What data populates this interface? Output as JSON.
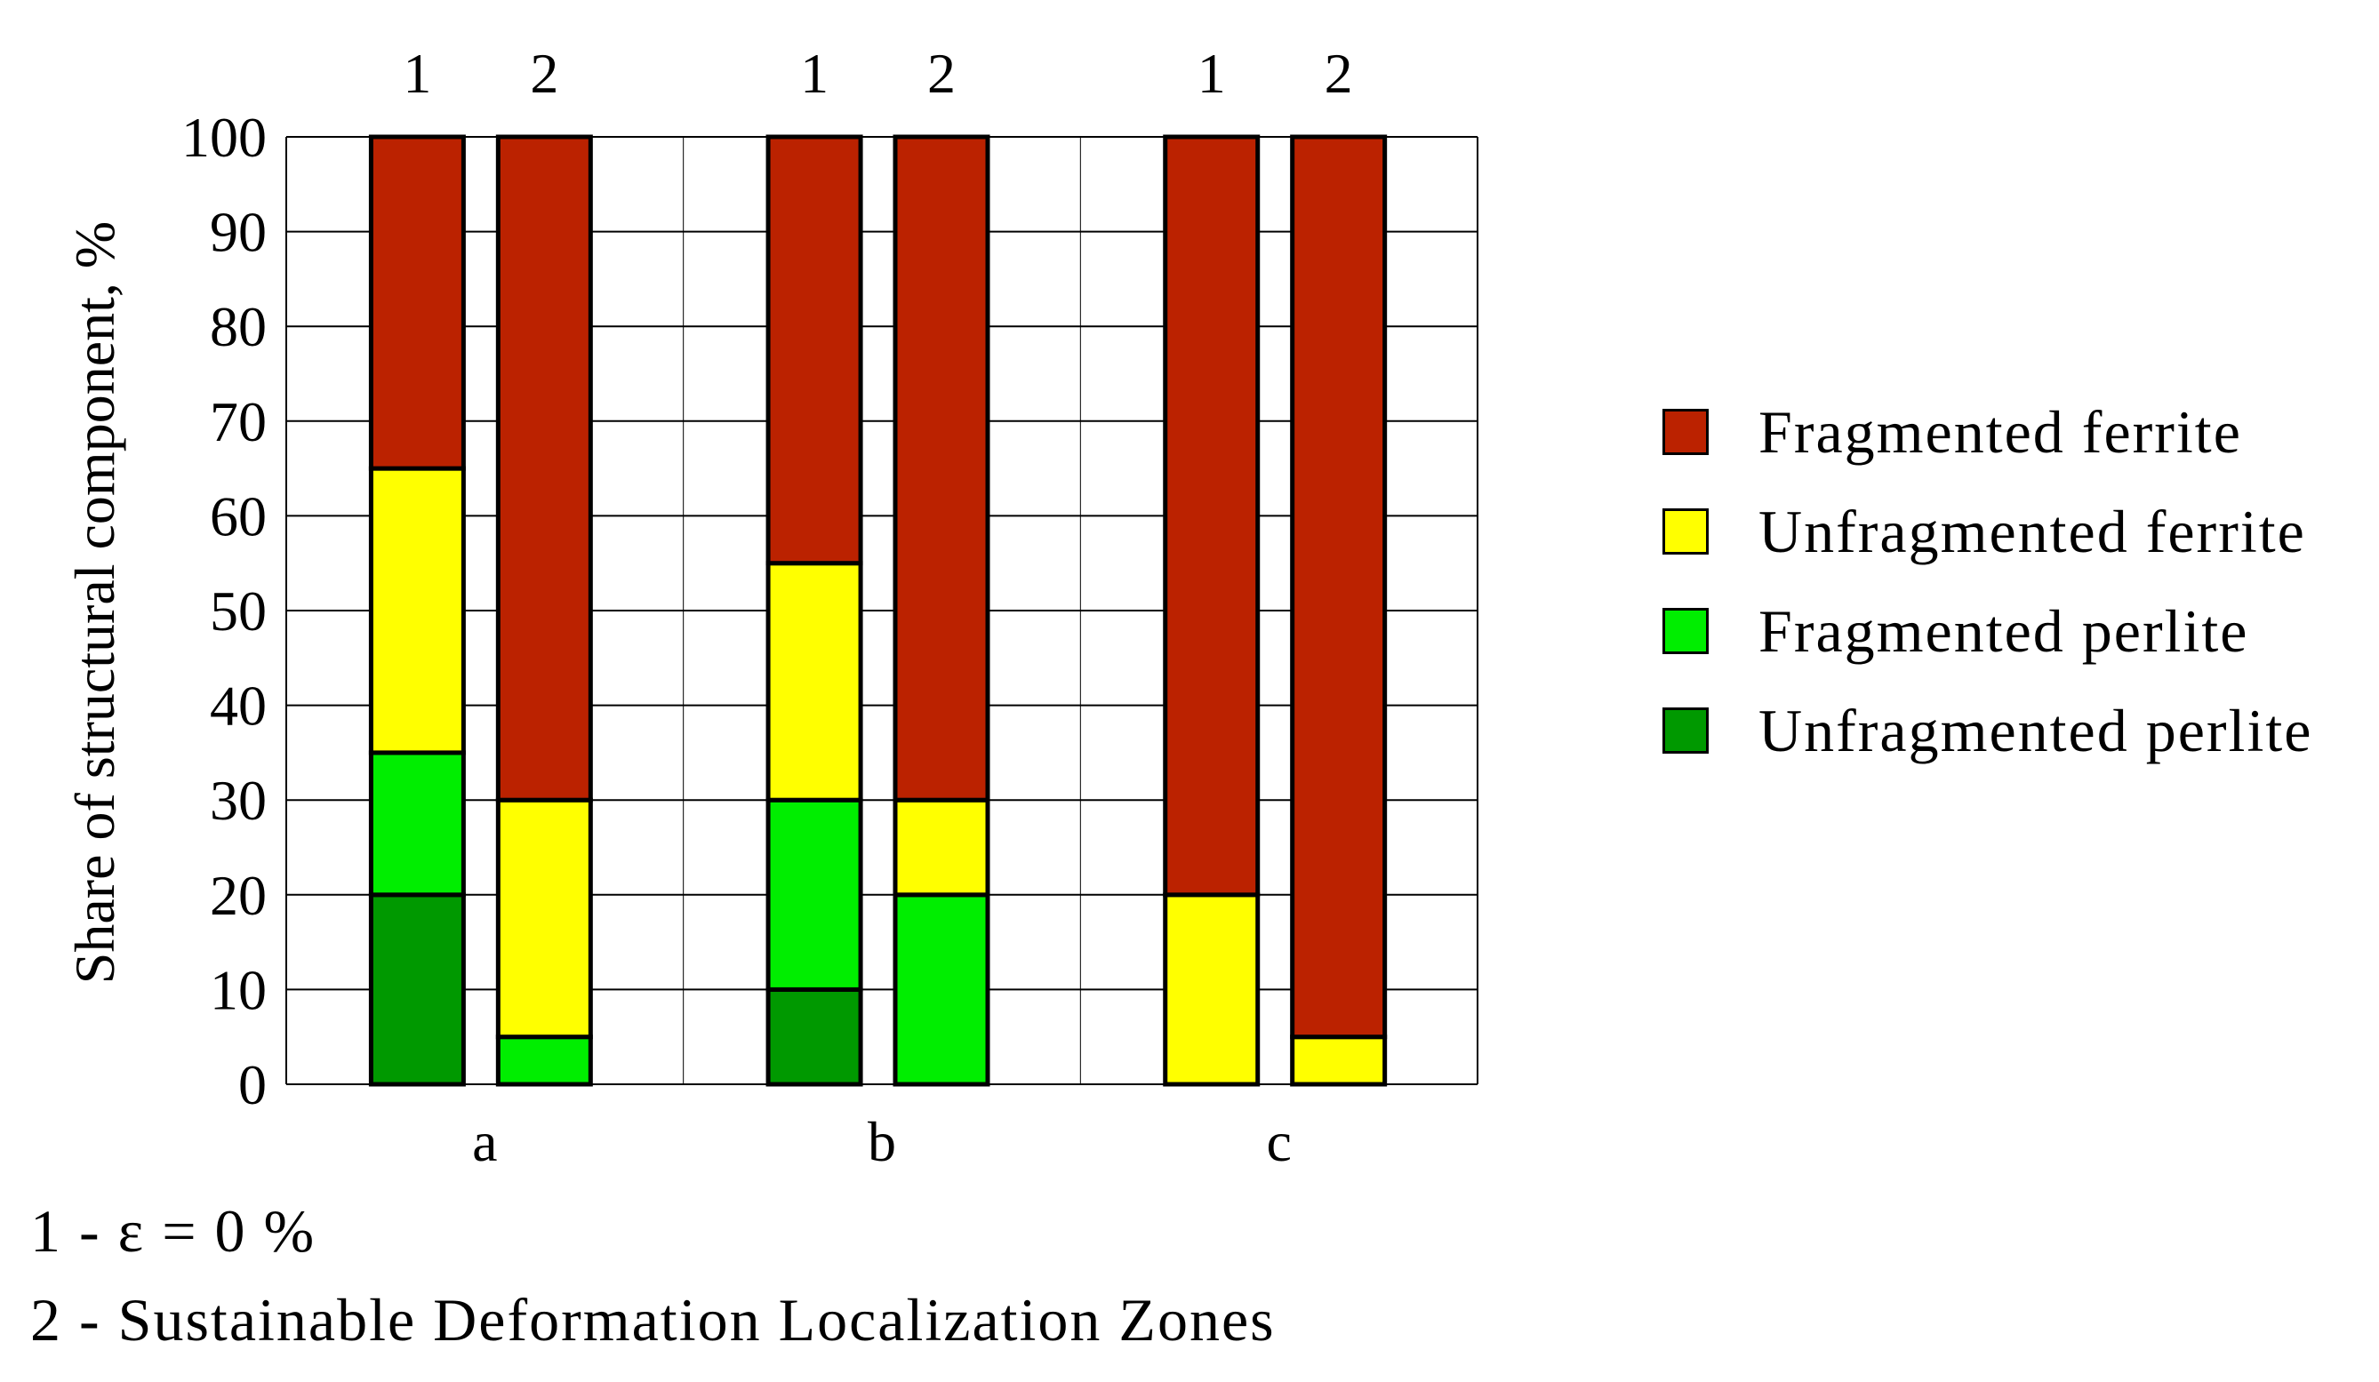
{
  "chart_data": {
    "type": "bar",
    "stacked": true,
    "ylabel": "Share of structural component, %",
    "ylim": [
      0,
      100
    ],
    "yticks": [
      0,
      10,
      20,
      30,
      40,
      50,
      60,
      70,
      80,
      90,
      100
    ],
    "grid": true,
    "legend_position": "right",
    "groups": [
      {
        "label": "a",
        "bars": [
          {
            "label": "1",
            "values": {
              "Unfragmented perlite": 20,
              "Fragmented perlite": 15,
              "Unfragmented ferrite": 30,
              "Fragmented ferrite": 35
            }
          },
          {
            "label": "2",
            "values": {
              "Unfragmented perlite": 0,
              "Fragmented perlite": 5,
              "Unfragmented ferrite": 25,
              "Fragmented ferrite": 70
            }
          }
        ]
      },
      {
        "label": "b",
        "bars": [
          {
            "label": "1",
            "values": {
              "Unfragmented perlite": 10,
              "Fragmented perlite": 20,
              "Unfragmented ferrite": 25,
              "Fragmented ferrite": 45
            }
          },
          {
            "label": "2",
            "values": {
              "Unfragmented perlite": 0,
              "Fragmented perlite": 20,
              "Unfragmented ferrite": 10,
              "Fragmented ferrite": 70
            }
          }
        ]
      },
      {
        "label": "c",
        "bars": [
          {
            "label": "1",
            "values": {
              "Unfragmented perlite": 0,
              "Fragmented perlite": 0,
              "Unfragmented ferrite": 20,
              "Fragmented ferrite": 80
            }
          },
          {
            "label": "2",
            "values": {
              "Unfragmented perlite": 0,
              "Fragmented perlite": 0,
              "Unfragmented ferrite": 5,
              "Fragmented ferrite": 95
            }
          }
        ]
      }
    ],
    "series": [
      {
        "name": "Fragmented ferrite",
        "color": "#bb2200"
      },
      {
        "name": "Unfragmented ferrite",
        "color": "#ffff00"
      },
      {
        "name": "Fragmented perlite",
        "color": "#00ee00"
      },
      {
        "name": "Unfragmented perlite",
        "color": "#009900"
      }
    ],
    "stack_order": [
      "Unfragmented perlite",
      "Fragmented perlite",
      "Unfragmented ferrite",
      "Fragmented ferrite"
    ]
  },
  "notes": [
    "1 - ε = 0 %",
    "2 - Sustainable Deformation Localization Zones"
  ]
}
